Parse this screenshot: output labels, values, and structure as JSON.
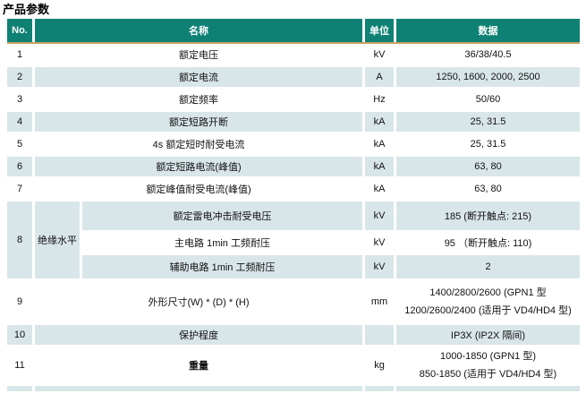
{
  "page": {
    "title": "产品参数"
  },
  "colors": {
    "header_bg": "#0E8174",
    "header_text": "#ffffff",
    "stripe_row_bg": "#D9E6E9",
    "header_underline": "#C6A35E"
  },
  "table": {
    "headers": {
      "no": "No.",
      "name": "名称",
      "unit": "单位",
      "data": "数据"
    },
    "rows": [
      {
        "no": "1",
        "name": "额定电压",
        "unit": "kV",
        "data": "36/38/40.5"
      },
      {
        "no": "2",
        "name": "额定电流",
        "unit": "A",
        "data": "1250, 1600, 2000, 2500"
      },
      {
        "no": "3",
        "name": "额定频率",
        "unit": "Hz",
        "data": "50/60"
      },
      {
        "no": "4",
        "name": "额定短路开断",
        "unit": "kA",
        "data": "25, 31.5"
      },
      {
        "no": "5",
        "name": "4s 额定短时耐受电流",
        "unit": "kA",
        "data": "25, 31.5"
      },
      {
        "no": "6",
        "name": "额定短路电流(峰值)",
        "unit": "kA",
        "data": "63, 80"
      },
      {
        "no": "7",
        "name": "额定峰值耐受电流(峰值)",
        "unit": "kA",
        "data": "63, 80"
      }
    ],
    "group_row": {
      "no": "8",
      "group_name": "绝缘水平",
      "sub_rows": [
        {
          "name": "额定雷电冲击耐受电压",
          "unit": "kV",
          "data": "185 (断开触点: 215)"
        },
        {
          "name": "主电路  1min  工频耐压",
          "unit": "kV",
          "data": "95 （断开触点: 110)"
        },
        {
          "name": "辅助电路  1min  工频耐压",
          "unit": "kV",
          "data": "2"
        }
      ]
    },
    "rows_tail": [
      {
        "no": "9",
        "name": "外形尺寸(W) * (D) * (H)",
        "unit": "mm",
        "data_lines": [
          "1400/2800/2600 (GPN1 型",
          "1200/2600/2400 (适用于 VD4/HD4 型)"
        ]
      },
      {
        "no": "10",
        "name": "保护程度",
        "unit": "",
        "data": "IP3X (IP2X 隔间)"
      },
      {
        "no": "11",
        "name": "重量",
        "unit": "kg",
        "data_lines": [
          "1000-1850 (GPN1 型)",
          "850-1850 (适用于 VD4/HD4 型)"
        ]
      }
    ]
  }
}
